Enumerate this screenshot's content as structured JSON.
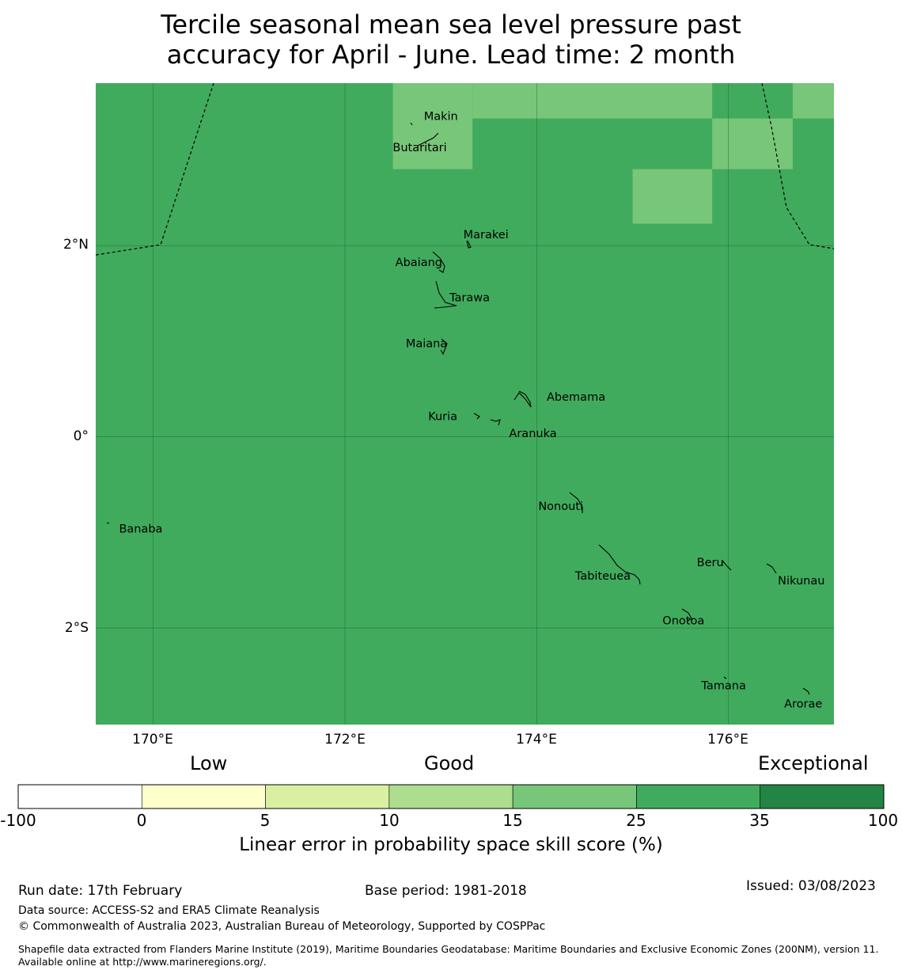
{
  "title": {
    "line1": "Tercile seasonal mean sea level pressure past",
    "line2": "accuracy for April - June. Lead time: 2 month"
  },
  "map": {
    "lat_range": [
      -3.01,
      3.7
    ],
    "lon_range": [
      169.4,
      177.1
    ],
    "grid_lats": [
      2,
      0,
      -2
    ],
    "grid_lons": [
      170,
      172,
      174,
      176
    ],
    "lat_labels": [
      "2°N",
      "0°",
      "2°S"
    ],
    "lon_labels": [
      "170°E",
      "172°E",
      "174°E",
      "176°E"
    ],
    "background_color": "#41ab5d",
    "highlight_color": "#78c679",
    "lighter_cells": [
      {
        "lon": [
          172.5,
          173.33
        ],
        "lat": [
          2.8,
          3.7
        ]
      },
      {
        "lon": [
          173.33,
          175.83
        ],
        "lat": [
          3.33,
          3.7
        ]
      },
      {
        "lon": [
          176.67,
          177.1
        ],
        "lat": [
          3.33,
          3.7
        ]
      },
      {
        "lon": [
          175.83,
          176.67
        ],
        "lat": [
          2.8,
          3.33
        ]
      },
      {
        "lon": [
          175.0,
          175.83
        ],
        "lat": [
          2.23,
          2.8
        ]
      }
    ],
    "places": [
      {
        "name": "Makin",
        "lon": 173.0,
        "lat": 3.35
      },
      {
        "name": "Butaritari",
        "lon": 172.78,
        "lat": 3.02
      },
      {
        "name": "Marakei",
        "lon": 173.47,
        "lat": 2.11
      },
      {
        "name": "Abaiang",
        "lon": 172.77,
        "lat": 1.82
      },
      {
        "name": "Tarawa",
        "lon": 173.3,
        "lat": 1.45
      },
      {
        "name": "Maiana",
        "lon": 172.85,
        "lat": 0.97
      },
      {
        "name": "Abemama",
        "lon": 174.41,
        "lat": 0.41
      },
      {
        "name": "Kuria",
        "lon": 173.02,
        "lat": 0.21
      },
      {
        "name": "Aranuka",
        "lon": 173.96,
        "lat": 0.03
      },
      {
        "name": "Nonouti",
        "lon": 174.25,
        "lat": -0.73
      },
      {
        "name": "Banaba",
        "lon": 169.87,
        "lat": -0.97
      },
      {
        "name": "Beru",
        "lon": 175.81,
        "lat": -1.32
      },
      {
        "name": "Tabiteuea",
        "lon": 174.69,
        "lat": -1.46
      },
      {
        "name": "Nikunau",
        "lon": 176.76,
        "lat": -1.51
      },
      {
        "name": "Onotoa",
        "lon": 175.53,
        "lat": -1.93
      },
      {
        "name": "Tamana",
        "lon": 175.95,
        "lat": -2.61
      },
      {
        "name": "Arorae",
        "lon": 176.78,
        "lat": -2.8
      }
    ]
  },
  "colorbar": {
    "categories": [
      "Low",
      "Good",
      "Exceptional"
    ],
    "ticks": [
      "-100",
      "0",
      "5",
      "10",
      "15",
      "25",
      "35",
      "100"
    ],
    "colors": [
      "#ffffff",
      "#ffffcc",
      "#d9f0a3",
      "#addd8e",
      "#78c679",
      "#41ab5d",
      "#238443"
    ],
    "label": "Linear error in probability space skill score (%)"
  },
  "footer": {
    "run_date": "Run date: 17th February",
    "base_period": "Base period: 1981-2018",
    "issued": "Issued: 03/08/2023",
    "data_source": "Data source: ACCESS-S2 and ERA5 Climate Reanalysis",
    "copyright": "© Commonwealth of Australia 2023, Australian Bureau of Meteorology, Supported by COSPPac",
    "shapefile": "Shapefile data extracted from Flanders Marine Institute (2019), Maritime Boundaries Geodatabase: Maritime Boundaries and Exclusive Economic Zones (200NM), version 11. Available online at http://www.marineregions.org/."
  }
}
